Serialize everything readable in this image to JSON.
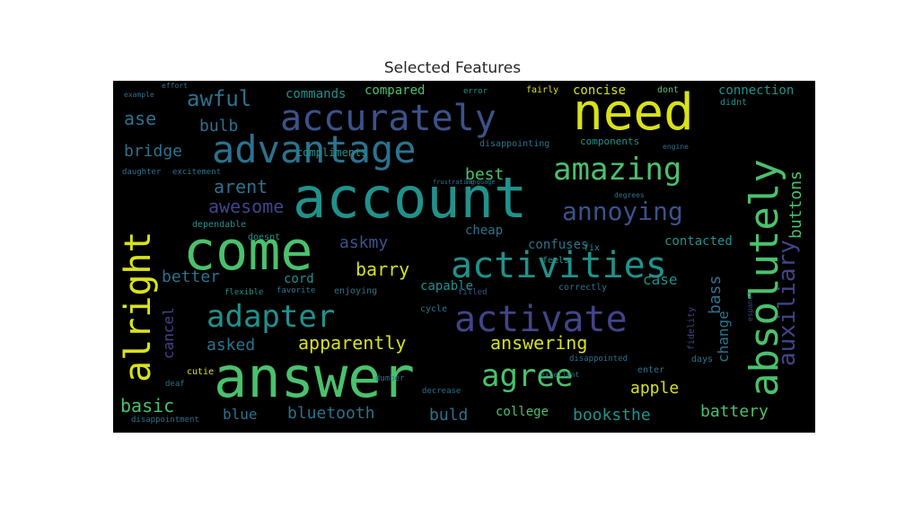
{
  "title": "Selected Features",
  "colors": {
    "yellow": "#d8e219",
    "lightgreen": "#7ad151",
    "green": "#4ac16d",
    "teal": "#21918c",
    "tealblue": "#2c728e",
    "blue": "#3b528b",
    "indigo": "#414487",
    "purple": "#482878",
    "darkpurple": "#440154"
  },
  "words": [
    "account",
    "answer",
    "come",
    "need",
    "accurately",
    "advantage",
    "absolutely",
    "alright",
    "activities",
    "activate",
    "amazing",
    "adapter",
    "agree",
    "apparently",
    "answering",
    "annoying",
    "auxiliary",
    "awful",
    "awesome",
    "arent",
    "askmy",
    "barry",
    "bridge",
    "ase",
    "bulb",
    "best",
    "buttons",
    "bass",
    "apple",
    "basic",
    "blue",
    "bluetooth",
    "buld",
    "booksthe",
    "battery",
    "college",
    "compared",
    "commands",
    "concise",
    "connection",
    "compliments",
    "cheap",
    "confuses",
    "contacted",
    "cord",
    "capable",
    "case",
    "change",
    "better",
    "cancel",
    "asked",
    "components",
    "dont",
    "didnt",
    "disappointing",
    "fairly",
    "error",
    "dependable",
    "doesnt",
    "excitement",
    "daughter",
    "fix",
    "feels",
    "correctly",
    "cycle",
    "enjoying",
    "favorite",
    "filled",
    "flexible",
    "fidelity",
    "cutie",
    "days",
    "enter",
    "disappointed",
    "dumber",
    "deaf",
    "decrease",
    "disappointment",
    "effort",
    "example",
    "engine",
    "degrees",
    "excellent",
    "frustrating",
    "language",
    "espanol"
  ]
}
